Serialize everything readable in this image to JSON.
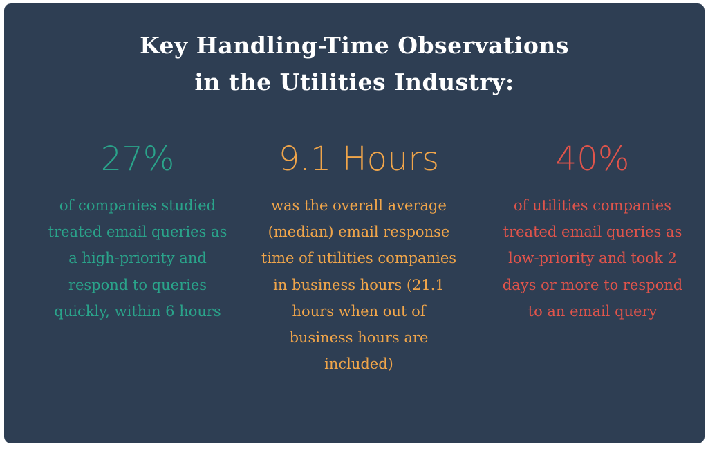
{
  "title": {
    "line1": "Key Handling-Time Observations",
    "line2": "in the Utilities Industry:"
  },
  "stats": [
    {
      "value": "27%",
      "color": "#2aa38a",
      "description": "of companies studied treated email queries as a high-priority and respond to queries quickly, within 6 hours"
    },
    {
      "value": "9.1 Hours",
      "color": "#f0a54a",
      "description": "was the overall average (median) email response time of utilities companies in business hours (21.1 hours when out of business hours are included)"
    },
    {
      "value": "40%",
      "color": "#e0544b",
      "description": "of utilities companies treated email queries as low-priority and took 2 days or more to respond to an email query"
    }
  ],
  "colors": {
    "background": "#2e3e53",
    "title": "#ffffff"
  }
}
